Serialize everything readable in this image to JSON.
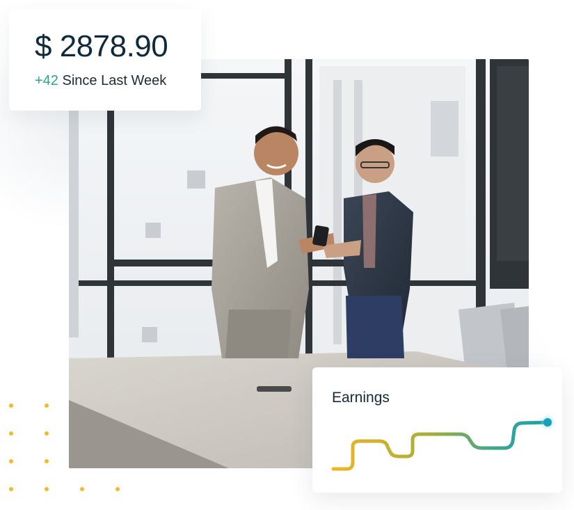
{
  "balance": {
    "amount": "$ 2878.90",
    "change": "+42",
    "since": "Since Last Week"
  },
  "earnings": {
    "title": "Earnings"
  },
  "colors": {
    "accent_green": "#2aa58a",
    "accent_yellow": "#f0b429",
    "accent_teal": "#18a1b5",
    "text_dark": "#0f2a3c"
  }
}
